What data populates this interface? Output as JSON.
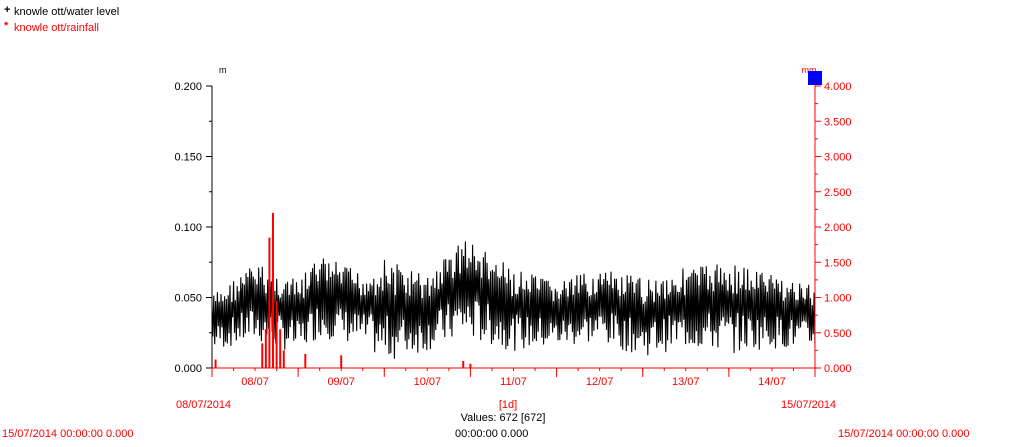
{
  "legend": [
    {
      "marker": "+",
      "label": "knowle ott/water level",
      "color": "#000000"
    },
    {
      "marker": "*",
      "label": "knowle ott/rainfall",
      "color": "#ff0000"
    }
  ],
  "colors": {
    "primary_series": "#000000",
    "secondary_series": "#ff0000",
    "selection_box": "#0000ff"
  },
  "chart_data": {
    "type": "line",
    "x_ticks": [
      "08/07",
      "09/07",
      "10/07",
      "11/07",
      "12/07",
      "13/07",
      "14/07"
    ],
    "x_range": [
      "08/07/2014",
      "15/07/2014"
    ],
    "x_start_label": "08/07/2014",
    "x_end_label": "15/07/2014",
    "x_interval_label": "[1d]",
    "values_count_label": "Values: 672 [672]",
    "left_axis": {
      "unit": "m",
      "ylim": [
        0.0,
        0.2
      ],
      "ticks": [
        "0.000",
        "0.050",
        "0.100",
        "0.150",
        "0.200"
      ]
    },
    "right_axis": {
      "unit": "mm",
      "ylim": [
        0.0,
        4.0
      ],
      "ticks": [
        "0.000",
        "0.500",
        "1.000",
        "1.500",
        "2.000",
        "2.500",
        "3.000",
        "3.500",
        "4.000"
      ]
    },
    "series": [
      {
        "name": "knowle ott/water level",
        "axis": "left",
        "envelope": [
          {
            "x": "08/07/2014 00:00",
            "low": 0.012,
            "high": 0.052
          },
          {
            "x": "08/07/2014 12:00",
            "low": 0.018,
            "high": 0.075
          },
          {
            "x": "09/07/2014 00:00",
            "low": 0.01,
            "high": 0.062
          },
          {
            "x": "09/07/2014 06:00",
            "low": 0.022,
            "high": 0.08
          },
          {
            "x": "09/07/2014 18:00",
            "low": 0.015,
            "high": 0.068
          },
          {
            "x": "10/07/2014 00:00",
            "low": 0.004,
            "high": 0.078
          },
          {
            "x": "10/07/2014 12:00",
            "low": 0.012,
            "high": 0.066
          },
          {
            "x": "10/07/2014 22:00",
            "low": 0.02,
            "high": 0.094
          },
          {
            "x": "11/07/2014 12:00",
            "low": 0.012,
            "high": 0.07
          },
          {
            "x": "12/07/2014 00:00",
            "low": 0.014,
            "high": 0.062
          },
          {
            "x": "12/07/2014 12:00",
            "low": 0.018,
            "high": 0.07
          },
          {
            "x": "13/07/2014 00:00",
            "low": 0.008,
            "high": 0.064
          },
          {
            "x": "13/07/2014 12:00",
            "low": 0.014,
            "high": 0.072
          },
          {
            "x": "14/07/2014 00:00",
            "low": 0.01,
            "high": 0.076
          },
          {
            "x": "14/07/2014 12:00",
            "low": 0.014,
            "high": 0.068
          },
          {
            "x": "15/07/2014 00:00",
            "low": 0.012,
            "high": 0.058
          }
        ]
      },
      {
        "name": "knowle ott/rainfall",
        "axis": "right",
        "bars": [
          {
            "x": "08/07/2014 01:00",
            "value": 0.12
          },
          {
            "x": "08/07/2014 14:00",
            "value": 0.35
          },
          {
            "x": "08/07/2014 15:00",
            "value": 0.55
          },
          {
            "x": "08/07/2014 16:00",
            "value": 1.85
          },
          {
            "x": "08/07/2014 17:00",
            "value": 2.2
          },
          {
            "x": "08/07/2014 18:00",
            "value": 0.95
          },
          {
            "x": "08/07/2014 19:00",
            "value": 0.55
          },
          {
            "x": "08/07/2014 20:00",
            "value": 0.25
          },
          {
            "x": "09/07/2014 02:00",
            "value": 0.2
          },
          {
            "x": "09/07/2014 12:00",
            "value": 0.18
          },
          {
            "x": "10/07/2014 22:00",
            "value": 0.1
          },
          {
            "x": "11/07/2014 00:00",
            "value": 0.06
          }
        ]
      }
    ]
  },
  "footer": {
    "left": "15/07/2014 00:00:00   0.000",
    "center": "00:00:00   0.000",
    "right": "15/07/2014 00:00:00   0.000"
  }
}
